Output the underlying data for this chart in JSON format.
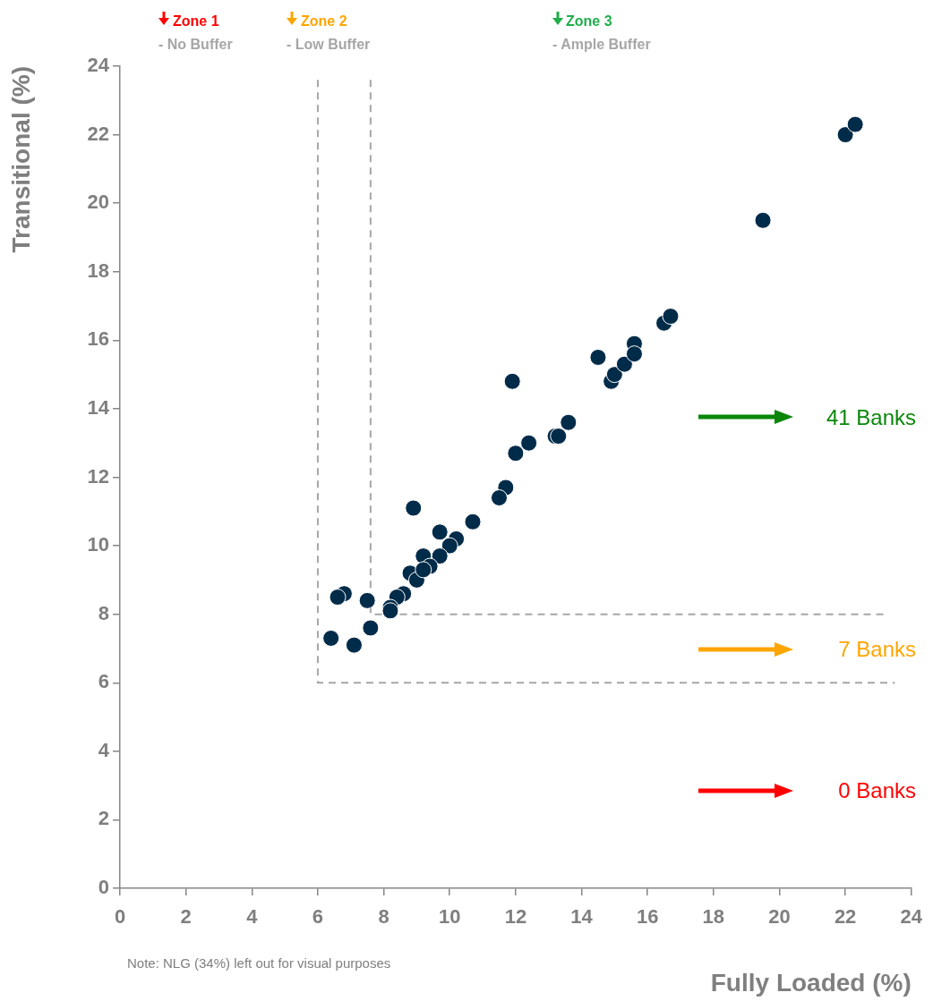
{
  "chart_data": {
    "type": "scatter",
    "xlabel": "Fully Loaded (%)",
    "ylabel": "Transitional (%)",
    "xlim": [
      0,
      24
    ],
    "xticks": [
      0,
      2,
      4,
      6,
      8,
      10,
      12,
      14,
      16,
      18,
      20,
      22,
      24
    ],
    "ylim": [
      0,
      24
    ],
    "yticks": [
      0,
      2,
      4,
      6,
      8,
      10,
      12,
      14,
      16,
      18,
      20,
      22,
      24
    ],
    "grid": false,
    "legend": false,
    "marker": "circle",
    "annotations": [
      "Zone 1",
      "- No Buffer",
      "Zone 2",
      "- Low Buffer",
      "Zone 3",
      "- Ample Buffer",
      "41 Banks",
      "7 Banks",
      "0 Banks",
      "Note: NLG (34%) left out for visual purposes"
    ],
    "series": [
      {
        "color": "#002b49",
        "x": [
          8.9,
          11.7,
          11.5,
          10.7,
          9.7,
          10.2,
          10.0,
          9.7,
          9.2,
          9.4,
          8.8,
          9.0,
          9.2,
          8.6,
          8.4,
          8.2,
          8.2,
          7.5,
          6.8,
          6.6,
          7.6,
          6.4,
          7.1,
          11.9,
          12.0,
          12.4,
          13.2,
          13.3,
          13.6,
          14.5,
          14.9,
          15.0,
          15.3,
          15.6,
          15.6,
          16.5,
          16.7,
          19.5,
          22.0,
          22.3
        ],
        "values": [
          11.1,
          11.7,
          11.4,
          10.7,
          10.4,
          10.2,
          10.0,
          9.7,
          9.7,
          9.4,
          9.2,
          9.0,
          9.3,
          8.6,
          8.5,
          8.2,
          8.1,
          8.4,
          8.6,
          8.5,
          7.6,
          7.3,
          7.1,
          14.8,
          12.7,
          13.0,
          13.2,
          13.2,
          13.6,
          15.5,
          14.8,
          15.0,
          15.3,
          15.9,
          15.6,
          16.5,
          16.7,
          19.5,
          22.0,
          22.3
        ]
      },
      {
        "type": "line",
        "color": "#a6a6a6",
        "line_style": "dashed",
        "marker": "none",
        "x": [
          6,
          6,
          23.5
        ],
        "values": [
          23.6,
          6,
          6
        ]
      },
      {
        "type": "line",
        "color": "#a6a6a6",
        "line_style": "dashed",
        "marker": "none",
        "x": [
          7.6,
          7.6,
          23.3
        ],
        "values": [
          23.6,
          8,
          8
        ]
      }
    ]
  }
}
